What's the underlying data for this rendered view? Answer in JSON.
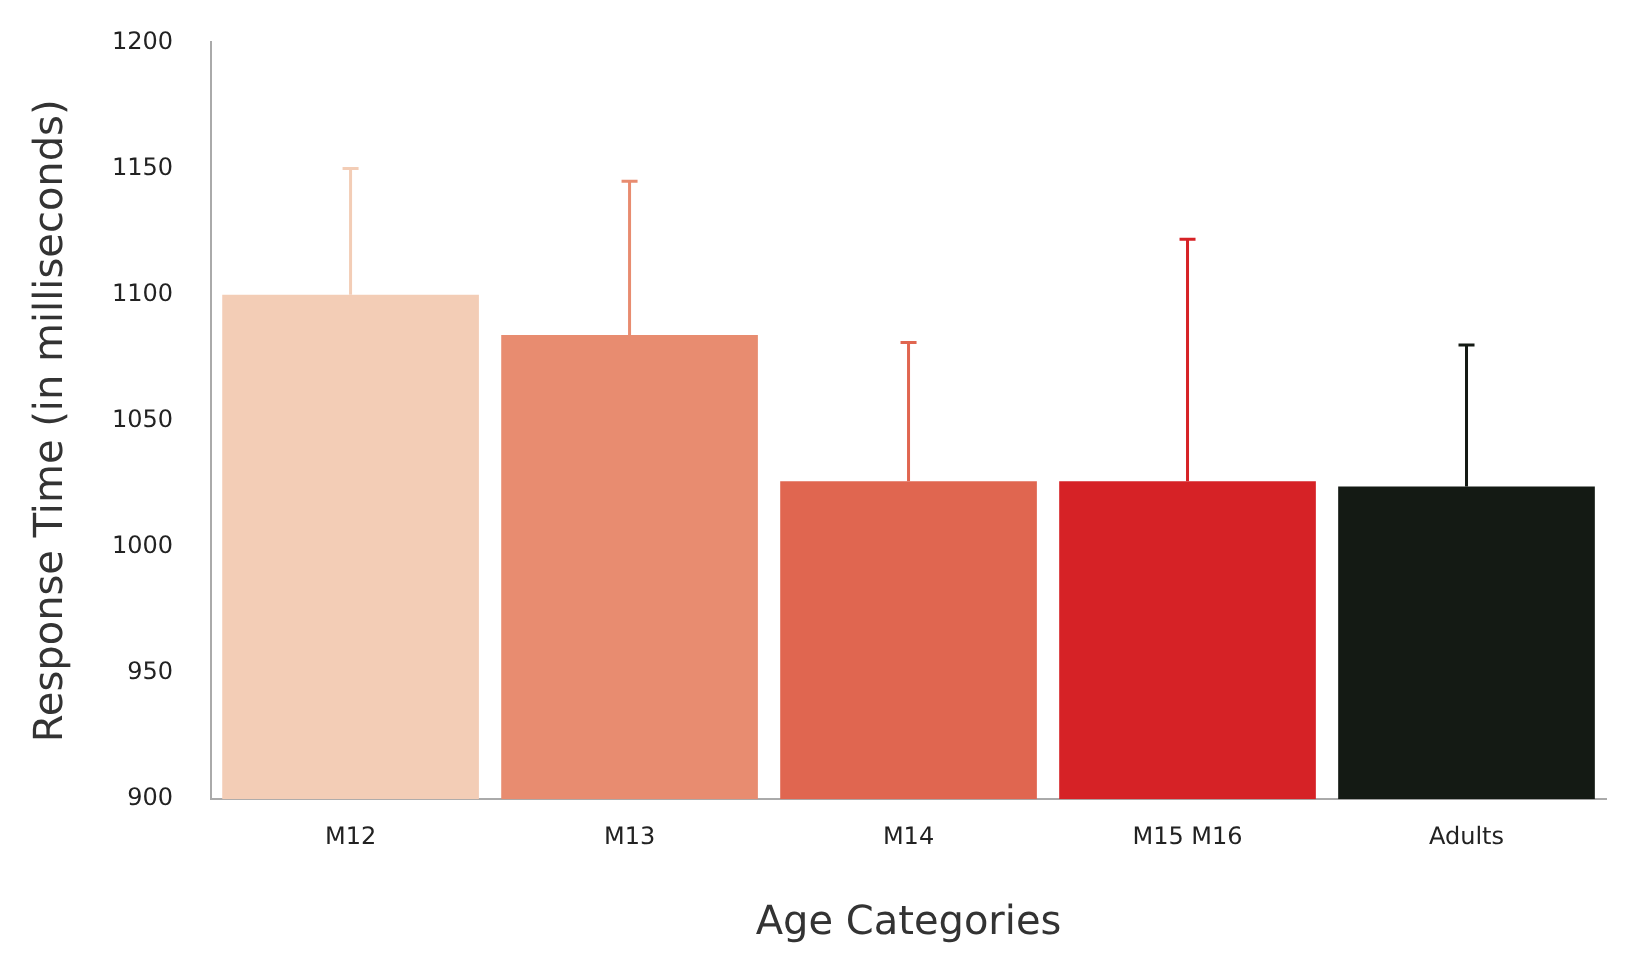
{
  "chart_data": {
    "type": "bar",
    "xlabel": "Age Categories",
    "ylabel": "Response Time (in milliseconds)",
    "categories": [
      "M12",
      "M13",
      "M14",
      "M15 M16",
      "Adults"
    ],
    "values": [
      1100,
      1084,
      1026,
      1026,
      1024
    ],
    "colors": [
      "#f3cdb6",
      "#e88c70",
      "#e06650",
      "#d62226",
      "#141a14"
    ],
    "errors": [
      [
        1100,
        1150
      ],
      [
        1084,
        1145
      ],
      [
        1026,
        1081
      ],
      [
        1026,
        1122
      ],
      [
        1024,
        1080
      ]
    ],
    "ylim": [
      900,
      1200
    ],
    "yticks": [
      900,
      950,
      1000,
      1050,
      1100,
      1150,
      1200
    ],
    "grid": false,
    "legend": false
  }
}
